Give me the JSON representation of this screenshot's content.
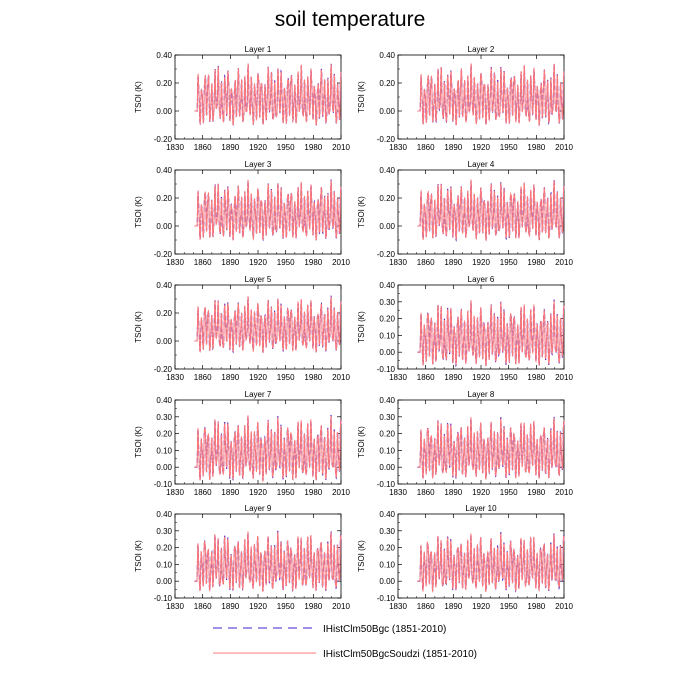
{
  "figure_title": "soil temperature",
  "chart_data": {
    "type": "line",
    "ylabel": "TSOI  (K)",
    "x_ticks": [
      "1830",
      "1860",
      "1890",
      "1920",
      "1950",
      "1980",
      "2010"
    ],
    "xlim": [
      1830,
      2010
    ],
    "series_styles": [
      {
        "color": "#4422cc",
        "dash": "dashed"
      },
      {
        "color": "#ff7a7a",
        "dash": "solid"
      }
    ],
    "legend": {
      "placement": "bottom-center",
      "entries": [
        {
          "label": "IHistClm50Bgc (1851-2010)",
          "color": "#4422cc",
          "dash": "dashed"
        },
        {
          "label": "IHistClm50BgcSoudzi (1851-2010)",
          "color": "#ff7a7a",
          "dash": "solid"
        }
      ]
    },
    "panels": [
      {
        "title": "Layer 1",
        "ylim": [
          -0.2,
          0.4
        ],
        "y_ticks": [
          "-0.20",
          "0.00",
          "0.20",
          "0.40"
        ],
        "min": -0.1,
        "max": 0.34
      },
      {
        "title": "Layer 2",
        "ylim": [
          -0.2,
          0.4
        ],
        "y_ticks": [
          "-0.20",
          "0.00",
          "0.20",
          "0.40"
        ],
        "min": -0.1,
        "max": 0.34
      },
      {
        "title": "Layer 3",
        "ylim": [
          -0.2,
          0.4
        ],
        "y_ticks": [
          "-0.20",
          "0.00",
          "0.20",
          "0.40"
        ],
        "min": -0.1,
        "max": 0.33
      },
      {
        "title": "Layer 4",
        "ylim": [
          -0.2,
          0.4
        ],
        "y_ticks": [
          "-0.20",
          "0.00",
          "0.20",
          "0.40"
        ],
        "min": -0.1,
        "max": 0.33
      },
      {
        "title": "Layer 5",
        "ylim": [
          -0.2,
          0.4
        ],
        "y_ticks": [
          "-0.20",
          "0.00",
          "0.20",
          "0.40"
        ],
        "min": -0.08,
        "max": 0.32
      },
      {
        "title": "Layer 6",
        "ylim": [
          -0.1,
          0.4
        ],
        "y_ticks": [
          "-0.10",
          "0.00",
          "0.10",
          "0.20",
          "0.30",
          "0.40"
        ],
        "min": -0.08,
        "max": 0.31
      },
      {
        "title": "Layer 7",
        "ylim": [
          -0.1,
          0.4
        ],
        "y_ticks": [
          "-0.10",
          "0.00",
          "0.10",
          "0.20",
          "0.30",
          "0.40"
        ],
        "min": -0.08,
        "max": 0.31
      },
      {
        "title": "Layer 8",
        "ylim": [
          -0.1,
          0.4
        ],
        "y_ticks": [
          "-0.10",
          "0.00",
          "0.10",
          "0.20",
          "0.30",
          "0.40"
        ],
        "min": -0.07,
        "max": 0.3
      },
      {
        "title": "Layer 9",
        "ylim": [
          -0.1,
          0.4
        ],
        "y_ticks": [
          "-0.10",
          "0.00",
          "0.10",
          "0.20",
          "0.30",
          "0.40"
        ],
        "min": -0.06,
        "max": 0.3
      },
      {
        "title": "Layer 10",
        "ylim": [
          -0.1,
          0.4
        ],
        "y_ticks": [
          "-0.10",
          "0.00",
          "0.10",
          "0.20",
          "0.30",
          "0.40"
        ],
        "min": -0.06,
        "max": 0.29
      }
    ]
  }
}
